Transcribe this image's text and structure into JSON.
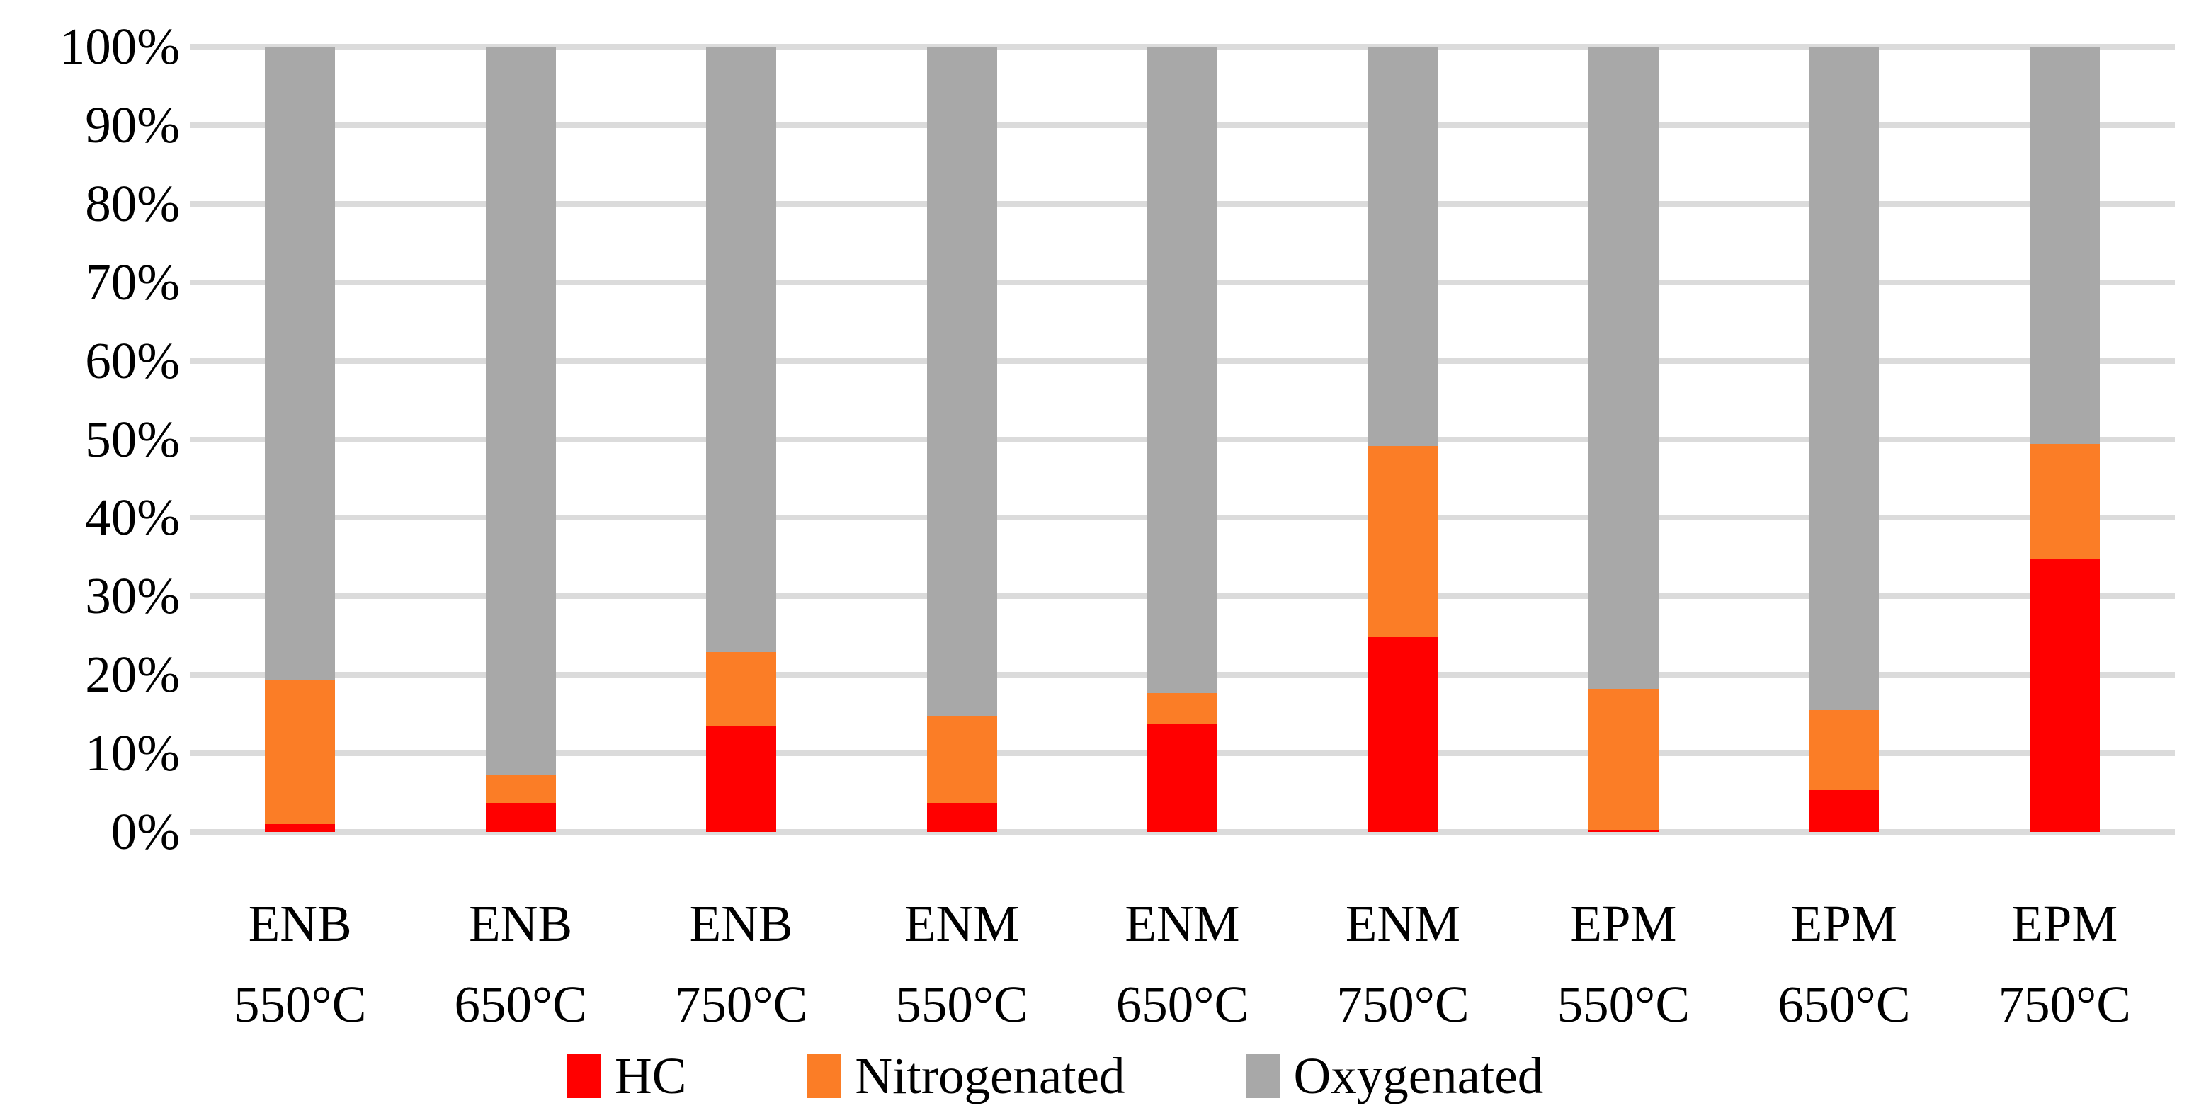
{
  "figure": {
    "background_color": "#FFFFFF",
    "text_color": "#000000",
    "gridline_color": "#DBDBDB"
  },
  "chart_data": {
    "type": "bar",
    "subtype": "stacked-100-percent-column",
    "title": "",
    "xlabel": "",
    "ylabel": "",
    "ylim": [
      0,
      100
    ],
    "grid": true,
    "legend_position": "bottom",
    "y_ticks": [
      "0%",
      "10%",
      "20%",
      "30%",
      "40%",
      "50%",
      "60%",
      "70%",
      "80%",
      "90%",
      "100%"
    ],
    "categories": [
      "ENB 550°C",
      "ENB 650°C",
      "ENB 750°C",
      "ENM 550°C",
      "ENM 650°C",
      "ENM 750°C",
      "EPM 550°C",
      "EPM 650°C",
      "EPM 750°C"
    ],
    "category_lines": [
      [
        "ENB",
        "550°C"
      ],
      [
        "ENB",
        "650°C"
      ],
      [
        "ENB",
        "750°C"
      ],
      [
        "ENM",
        "550°C"
      ],
      [
        "ENM",
        "650°C"
      ],
      [
        "ENM",
        "750°C"
      ],
      [
        "EPM",
        "550°C"
      ],
      [
        "EPM",
        "650°C"
      ],
      [
        "EPM",
        "750°C"
      ]
    ],
    "series": [
      {
        "name": "HC",
        "color": "#FF0000",
        "values": [
          1.0,
          3.7,
          13.4,
          3.7,
          13.8,
          24.8,
          0.3,
          5.3,
          34.7
        ]
      },
      {
        "name": "Nitrogenated",
        "color": "#FB7D26",
        "values": [
          18.4,
          3.6,
          9.5,
          11.1,
          3.9,
          24.3,
          17.9,
          10.2,
          14.7
        ]
      },
      {
        "name": "Oxygenated",
        "color": "#A8A8A8",
        "values": [
          80.6,
          92.7,
          77.1,
          85.2,
          82.3,
          50.9,
          81.8,
          84.5,
          50.6
        ]
      }
    ]
  },
  "layout_note": "values are percent of total products; each column sums to 100%"
}
